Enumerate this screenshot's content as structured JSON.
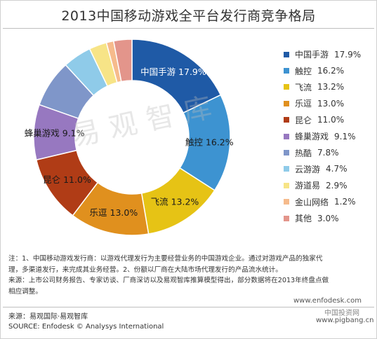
{
  "header": {
    "title": "2013中国移动游戏全平台发行商竞争格局"
  },
  "chart_data": {
    "type": "pie",
    "donut": true,
    "title": "2013中国移动游戏全平台发行商竞争格局",
    "legend_position": "right",
    "value_unit": "%",
    "slices": [
      {
        "label": "中国手游",
        "value": 17.9,
        "display": "17.9%",
        "color": "#1f5aa6",
        "label_color": "#ffffff"
      },
      {
        "label": "触控",
        "value": 16.2,
        "display": "16.2%",
        "color": "#3d93d1",
        "label_color": "#1a1a1a"
      },
      {
        "label": "飞流",
        "value": 13.2,
        "display": "13.2%",
        "color": "#e6c315",
        "label_color": "#1a1a1a"
      },
      {
        "label": "乐逗",
        "value": 13.0,
        "display": "13.0%",
        "color": "#e0901e",
        "label_color": "#1a1a1a"
      },
      {
        "label": "昆仑",
        "value": 11.0,
        "display": "11.0%",
        "color": "#b03c16",
        "label_color": "#1a1a1a"
      },
      {
        "label": "蜂巢游戏",
        "value": 9.1,
        "display": "9.1%",
        "color": "#9778c0",
        "label_color": "#1a1a1a"
      },
      {
        "label": "热酷",
        "value": 7.8,
        "display": "7.8%",
        "color": "#7f96c9",
        "label_color": null
      },
      {
        "label": "云游游",
        "value": 4.7,
        "display": "4.7%",
        "color": "#8fcbe9",
        "label_color": null
      },
      {
        "label": "游道易",
        "value": 2.9,
        "display": "2.9%",
        "color": "#f7e487",
        "label_color": null
      },
      {
        "label": "金山网络",
        "value": 1.2,
        "display": "1.2%",
        "color": "#f6bb8c",
        "label_color": null
      },
      {
        "label": "其他",
        "value": 3.0,
        "display": "3.0%",
        "color": "#e3958b",
        "label_color": null
      }
    ]
  },
  "watermark": "易观智库",
  "notes": {
    "line1": "注：1、中国移动游戏发行商：以游戏代理发行为主要经营业务的中国游戏企业。通过对游戏产品的独家代",
    "line2": "理，多渠道发行，来完成其业务经营。2、份额以厂商在大陆市场代理发行的产品流水统计。",
    "line3": "来源：上市公司财务报告、专家访谈、厂商深访以及易观智库推算模型得出，部分数据将在2013年终盘点做",
    "line4": "相应调整。"
  },
  "source": {
    "cn": "来源：易观国际·易观智库",
    "en": "SOURCE: Enfodesk © Analysys International"
  },
  "site": {
    "url1": "www.enfodesk.com",
    "url2": "www.pigbang.cn",
    "badge": "中国投资网"
  }
}
